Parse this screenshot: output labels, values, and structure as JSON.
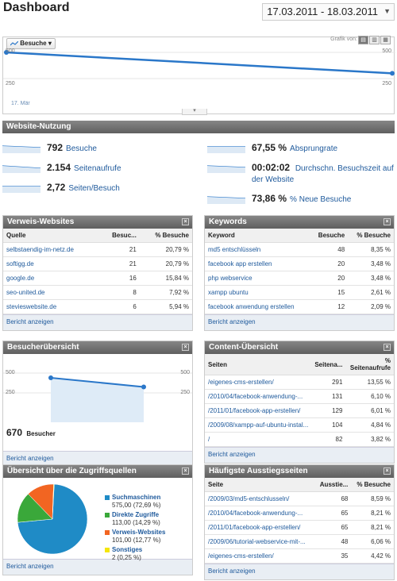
{
  "header": {
    "title": "Dashboard",
    "date_range": "17.03.2011 - 18.03.2011"
  },
  "main_graph": {
    "metric_label": "Besuche",
    "grafik_label": "Grafik von:",
    "axis_top_left": "500",
    "axis_bottom_left": "250",
    "axis_top_right": "500",
    "axis_bottom_right": "250",
    "date_tick": "17. Mär",
    "visits_start": 500,
    "visits_end": 300
  },
  "usage": {
    "title": "Website-Nutzung",
    "items": [
      {
        "value": "792",
        "label": "Besuche"
      },
      {
        "value": "2.154",
        "label": "Seitenaufrufe"
      },
      {
        "value": "2,72",
        "label": "Seiten/Besuch"
      },
      {
        "value": "67,55 %",
        "label": "Absprungrate"
      },
      {
        "value": "00:02:02",
        "label": "Durchschn. Besuchszeit auf der Website"
      },
      {
        "value": "73,86 %",
        "label": "% Neue Besuche"
      }
    ]
  },
  "referrers": {
    "title": "Verweis-Websites",
    "columns": [
      "Quelle",
      "Besuc...",
      "% Besuche"
    ],
    "rows": [
      [
        "selbstaendig-im-netz.de",
        "21",
        "20,79 %"
      ],
      [
        "softigg.de",
        "21",
        "20,79 %"
      ],
      [
        "google.de",
        "16",
        "15,84 %"
      ],
      [
        "seo-united.de",
        "8",
        "7,92 %"
      ],
      [
        "stevieswebsite.de",
        "6",
        "5,94 %"
      ]
    ],
    "report_link": "Bericht anzeigen"
  },
  "keywords": {
    "title": "Keywords",
    "columns": [
      "Keyword",
      "Besuche",
      "% Besuche"
    ],
    "rows": [
      [
        "md5 entschlüsseln",
        "48",
        "8,35 %"
      ],
      [
        "facebook app erstellen",
        "20",
        "3,48 %"
      ],
      [
        "php webservice",
        "20",
        "3,48 %"
      ],
      [
        "xampp ubuntu",
        "15",
        "2,61 %"
      ],
      [
        "facebook anwendung erstellen",
        "12",
        "2,09 %"
      ]
    ],
    "report_link": "Bericht anzeigen"
  },
  "visitors": {
    "title": "Besucherübersicht",
    "axis_top_left": "500",
    "axis_bottom_left": "250",
    "axis_top_right": "500",
    "axis_bottom_right": "250",
    "total": "670",
    "total_label": "Besucher",
    "visitors_start": 440,
    "visitors_end": 325,
    "report_link": "Bericht anzeigen"
  },
  "content": {
    "title": "Content-Übersicht",
    "columns": [
      "Seiten",
      "Seitena...",
      "% Seitenaufrufe"
    ],
    "rows": [
      [
        "/eigenes-cms-erstellen/",
        "291",
        "13,55 %"
      ],
      [
        "/2010/04/facebook-anwendung-...",
        "131",
        "6,10 %"
      ],
      [
        "/2011/01/facebook-app-erstellen/",
        "129",
        "6,01 %"
      ],
      [
        "/2009/08/xampp-auf-ubuntu-instal...",
        "104",
        "4,84 %"
      ],
      [
        "/",
        "82",
        "3,82 %"
      ]
    ],
    "report_link": "Bericht anzeigen"
  },
  "traffic_sources": {
    "title": "Übersicht über die Zugriffsquellen",
    "legend": [
      {
        "label": "Suchmaschinen",
        "value": "575,00 (72,69 %)",
        "color": "#1f8bc6",
        "fraction": 0.7269
      },
      {
        "label": "Direkte Zugriffe",
        "value": "113,00 (14,29 %)",
        "color": "#3aa83a",
        "fraction": 0.1429
      },
      {
        "label": "Verweis-Websites",
        "value": "101,00 (12,77 %)",
        "color": "#f26522",
        "fraction": 0.1277
      },
      {
        "label": "Sonstiges",
        "value": "2 (0,25 %)",
        "color": "#f5e60a",
        "fraction": 0.0025
      }
    ],
    "report_link": "Bericht anzeigen"
  },
  "exit_pages": {
    "title": "Häufigste Ausstiegsseiten",
    "columns": [
      "Seite",
      "Ausstie...",
      "% Besuche"
    ],
    "rows": [
      [
        "/2009/03/md5-entschlusseln/",
        "68",
        "8,59 %"
      ],
      [
        "/2010/04/facebook-anwendung-...",
        "65",
        "8,21 %"
      ],
      [
        "/2011/01/facebook-app-erstellen/",
        "65",
        "8,21 %"
      ],
      [
        "/2009/06/tutorial-webservice-mit-...",
        "48",
        "6,06 %"
      ],
      [
        "/eigenes-cms-erstellen/",
        "35",
        "4,42 %"
      ]
    ],
    "report_link": "Bericht anzeigen"
  }
}
